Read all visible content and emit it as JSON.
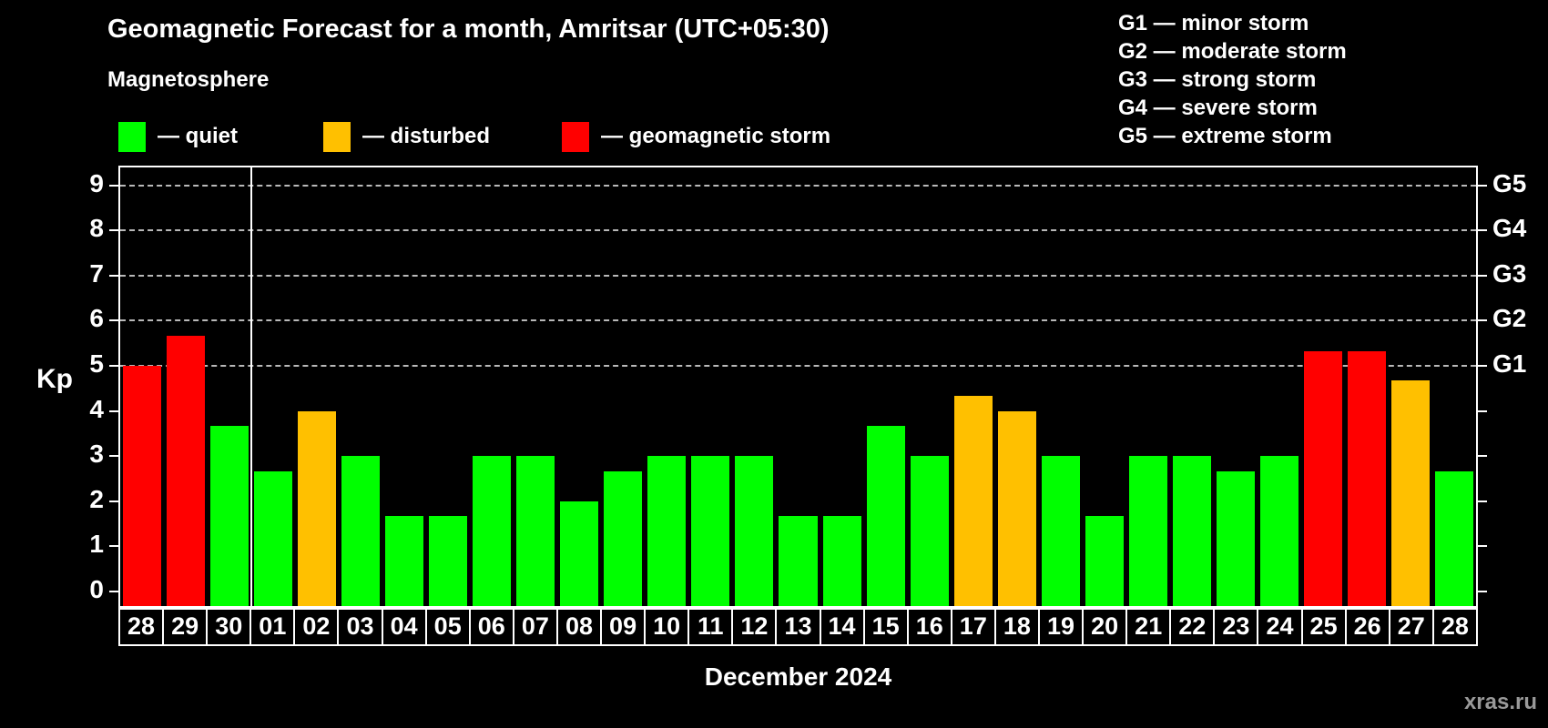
{
  "title": "Geomagnetic Forecast for a month, Amritsar (UTC+05:30)",
  "subtitle": "Magnetosphere",
  "legend": {
    "items": [
      {
        "key": "quiet",
        "label": "— quiet",
        "color": "#00ff00"
      },
      {
        "key": "disturbed",
        "label": "— disturbed",
        "color": "#ffc000"
      },
      {
        "key": "storm",
        "label": "— geomagnetic storm",
        "color": "#ff0000"
      }
    ]
  },
  "g_legend": [
    "G1 — minor storm",
    "G2 — moderate storm",
    "G3 — strong storm",
    "G4 — severe storm",
    "G5 — extreme storm"
  ],
  "footer": {
    "watermark": "xras.ru"
  },
  "chart_data": {
    "type": "bar",
    "title": "Geomagnetic Forecast for a month, Amritsar (UTC+05:30)",
    "ylabel": "Kp",
    "xlabel": "December 2024",
    "ylim": [
      -0.38,
      9.45
    ],
    "yticks": [
      0,
      1,
      2,
      3,
      4,
      5,
      6,
      7,
      8,
      9
    ],
    "gridlines": [
      5,
      6,
      7,
      8,
      9
    ],
    "right_axis_labels": [
      {
        "kp": 5,
        "label": "G1"
      },
      {
        "kp": 6,
        "label": "G2"
      },
      {
        "kp": 7,
        "label": "G3"
      },
      {
        "kp": 8,
        "label": "G4"
      },
      {
        "kp": 9,
        "label": "G5"
      }
    ],
    "grid": "dashed-horizontal-on-storm-levels",
    "legend_position": "top-left",
    "month_separator_after_index": 2,
    "categories": [
      "28",
      "29",
      "30",
      "01",
      "02",
      "03",
      "04",
      "05",
      "06",
      "07",
      "08",
      "09",
      "10",
      "11",
      "12",
      "13",
      "14",
      "15",
      "16",
      "17",
      "18",
      "19",
      "20",
      "21",
      "22",
      "23",
      "24",
      "25",
      "26",
      "27",
      "28"
    ],
    "values": [
      5,
      5.67,
      3.67,
      2.67,
      4,
      3,
      1.67,
      1.67,
      3,
      3,
      2,
      2.67,
      3,
      3,
      3,
      1.67,
      1.67,
      3.67,
      3,
      4.33,
      4,
      3,
      1.67,
      3,
      3,
      2.67,
      3,
      5.33,
      5.33,
      4.67,
      2.67
    ],
    "statuses": [
      "storm",
      "storm",
      "quiet",
      "quiet",
      "disturbed",
      "quiet",
      "quiet",
      "quiet",
      "quiet",
      "quiet",
      "quiet",
      "quiet",
      "quiet",
      "quiet",
      "quiet",
      "quiet",
      "quiet",
      "quiet",
      "quiet",
      "disturbed",
      "disturbed",
      "quiet",
      "quiet",
      "quiet",
      "quiet",
      "quiet",
      "quiet",
      "storm",
      "storm",
      "disturbed",
      "quiet"
    ],
    "colors": {
      "quiet": "#00ff00",
      "disturbed": "#ffc000",
      "storm": "#ff0000"
    }
  }
}
